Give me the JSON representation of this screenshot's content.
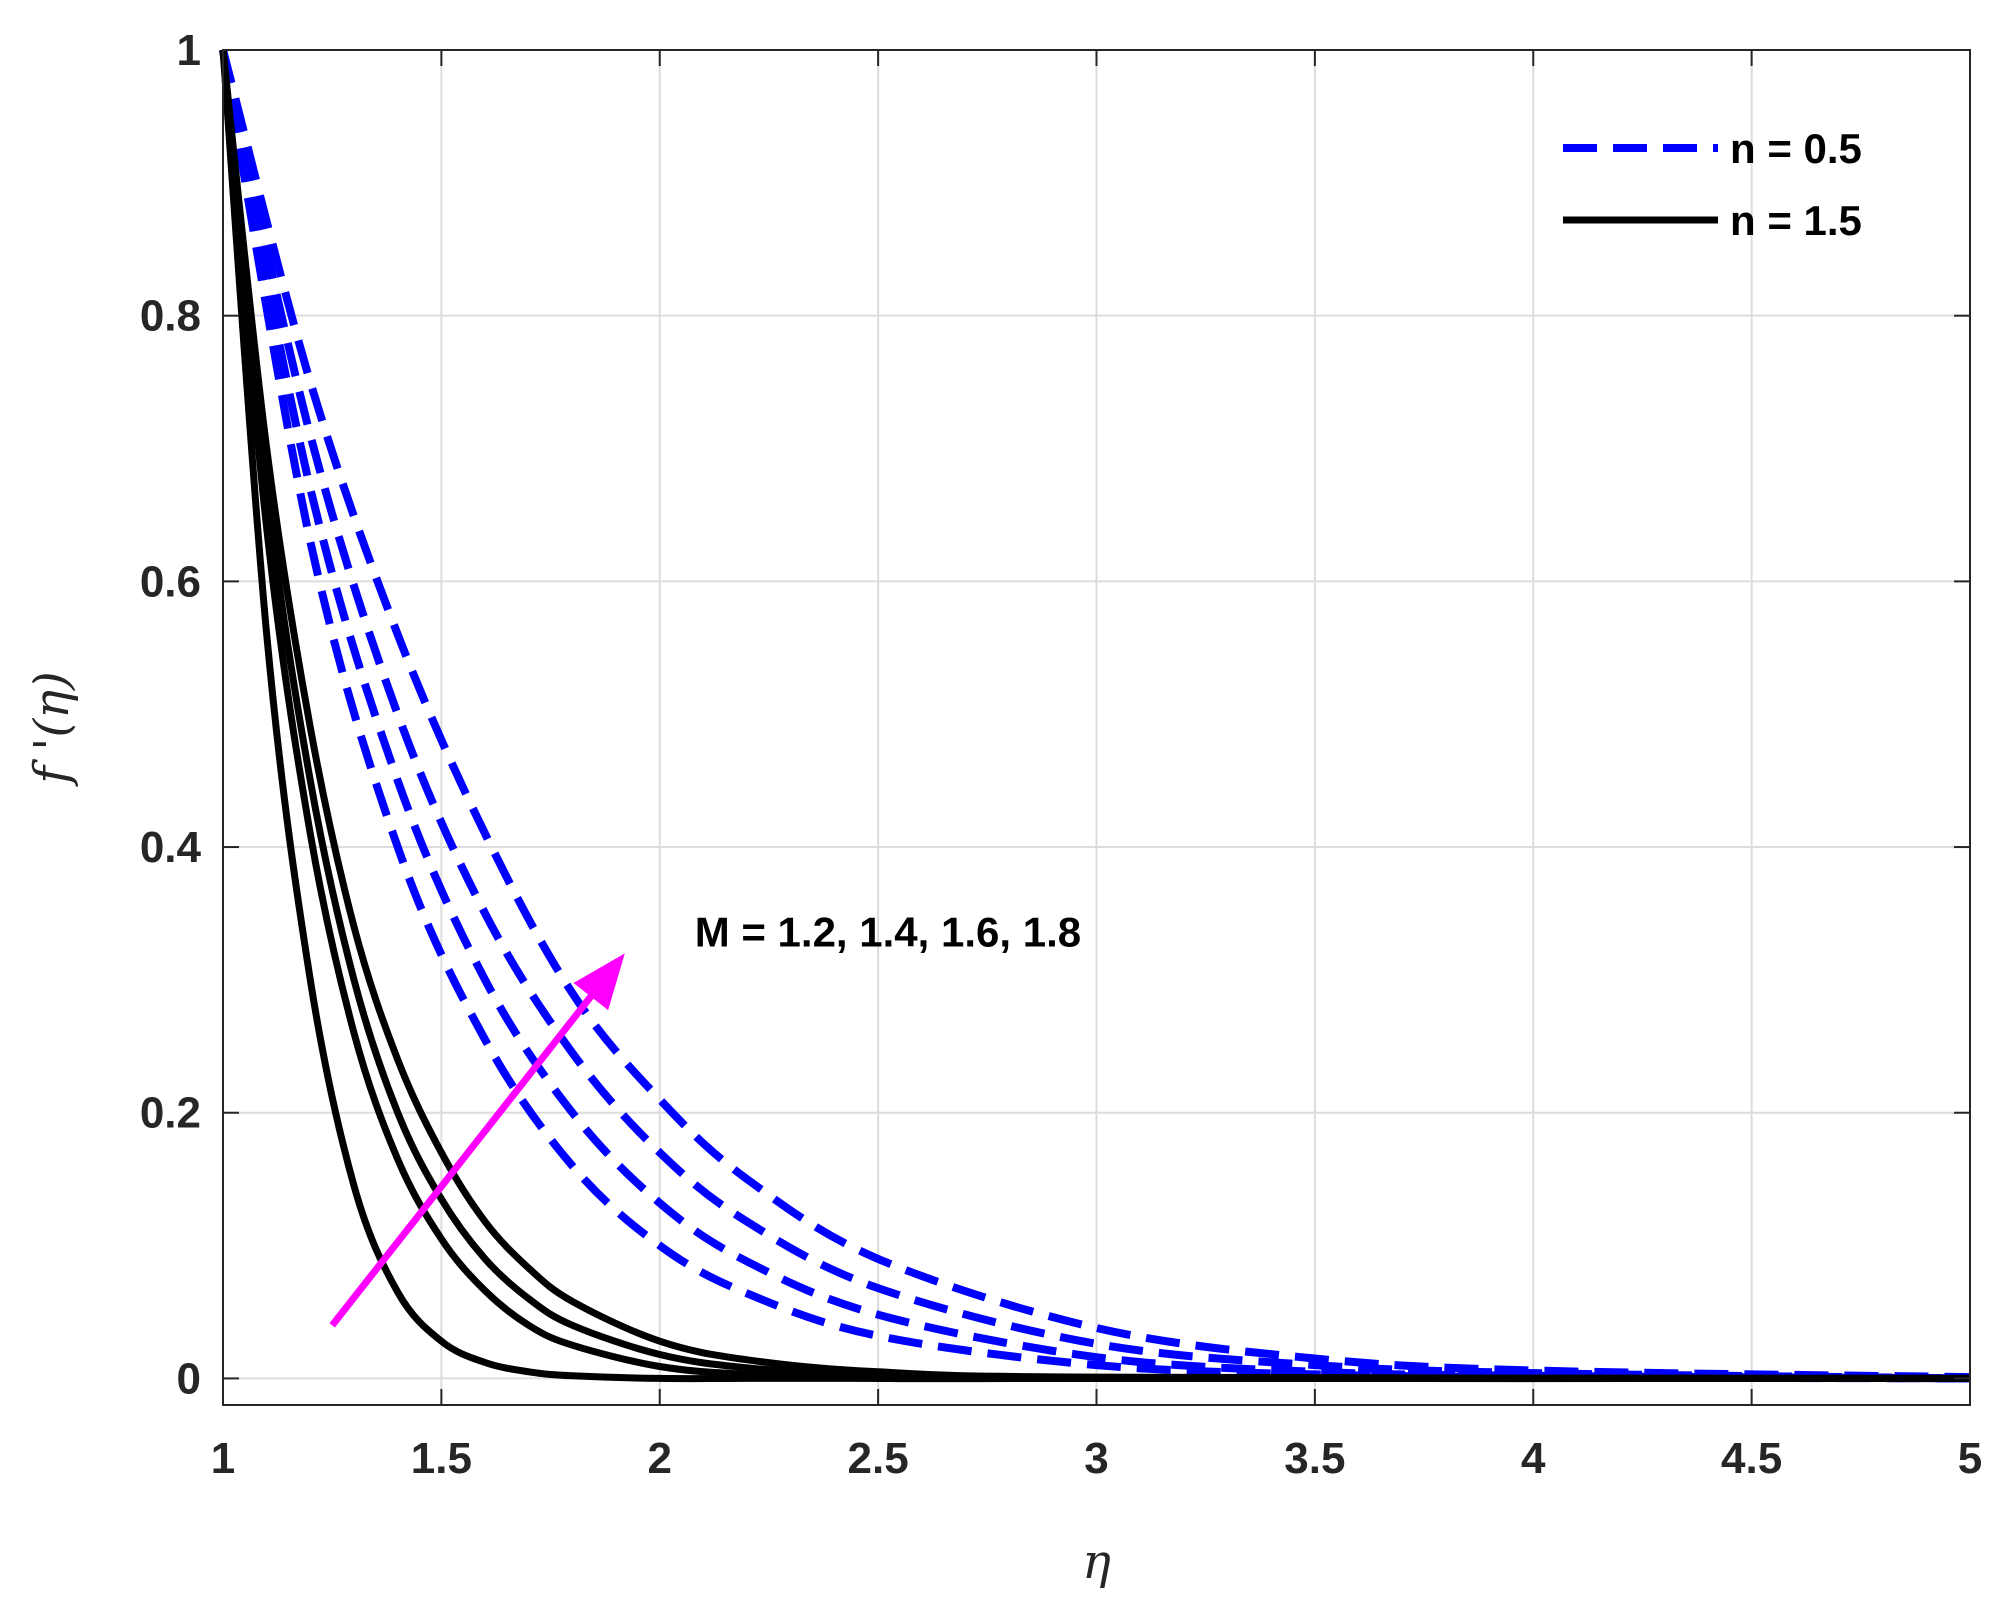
{
  "chart_data": {
    "type": "line",
    "xlabel": "η",
    "ylabel": "f '(η)",
    "xlim": [
      1,
      5
    ],
    "ylim": [
      -0.02,
      1
    ],
    "xticks": [
      1,
      1.5,
      2,
      2.5,
      3,
      3.5,
      4,
      4.5,
      5
    ],
    "yticks": [
      0,
      0.2,
      0.4,
      0.6,
      0.8,
      1
    ],
    "xtick_labels": [
      "1",
      "1.5",
      "2",
      "2.5",
      "3",
      "3.5",
      "4",
      "4.5",
      "5"
    ],
    "ytick_labels": [
      "0",
      "0.2",
      "0.4",
      "0.6",
      "0.8",
      "1"
    ],
    "grid": true,
    "legend": {
      "placement": "top-right",
      "entries": [
        {
          "label": "n = 0.5",
          "style": "dashed",
          "color": "#0000ff"
        },
        {
          "label": "n = 1.5",
          "style": "solid",
          "color": "#000000"
        }
      ]
    },
    "annotation": {
      "text": "M = 1.2, 1.4, 1.6, 1.8",
      "arrow_color": "#ff00ff",
      "arrow_from": [
        1.25,
        0.04
      ],
      "arrow_to": [
        1.92,
        0.32
      ],
      "text_at": [
        2.08,
        0.325
      ]
    },
    "series": [
      {
        "group": "n = 0.5",
        "style": "dashed",
        "color": "#0000ff",
        "x": [
          1,
          1.2,
          1.4,
          1.6,
          1.8,
          2.0,
          2.2,
          2.5,
          3.0,
          3.5,
          4.0,
          5.0
        ],
        "y": [
          1,
          0.63,
          0.4,
          0.255,
          0.16,
          0.1,
          0.064,
          0.032,
          0.01,
          0.003,
          0.001,
          0
        ]
      },
      {
        "group": "n = 0.5",
        "style": "dashed",
        "color": "#0000ff",
        "x": [
          1,
          1.2,
          1.4,
          1.6,
          1.8,
          2.0,
          2.2,
          2.5,
          3.0,
          3.5,
          4.0,
          5.0
        ],
        "y": [
          1,
          0.67,
          0.45,
          0.3,
          0.2,
          0.132,
          0.088,
          0.048,
          0.016,
          0.005,
          0.002,
          0
        ]
      },
      {
        "group": "n = 0.5",
        "style": "dashed",
        "color": "#0000ff",
        "x": [
          1,
          1.2,
          1.4,
          1.6,
          1.8,
          2.0,
          2.2,
          2.5,
          3.0,
          3.5,
          4.0,
          5.0
        ],
        "y": [
          1,
          0.71,
          0.5,
          0.35,
          0.245,
          0.17,
          0.118,
          0.068,
          0.026,
          0.01,
          0.004,
          0
        ]
      },
      {
        "group": "n = 0.5",
        "style": "dashed",
        "color": "#0000ff",
        "x": [
          1,
          1.2,
          1.4,
          1.6,
          1.8,
          2.0,
          2.2,
          2.5,
          3.0,
          3.5,
          4.0,
          5.0
        ],
        "y": [
          1,
          0.75,
          0.56,
          0.41,
          0.29,
          0.21,
          0.15,
          0.09,
          0.038,
          0.015,
          0.006,
          0.001
        ]
      },
      {
        "group": "n = 1.5",
        "style": "solid",
        "color": "#000000",
        "x": [
          1,
          1.1,
          1.2,
          1.3,
          1.4,
          1.5,
          1.6,
          1.7,
          1.8,
          2.0,
          2.2,
          2.5,
          3.0
        ],
        "y": [
          1,
          0.56,
          0.3,
          0.145,
          0.065,
          0.028,
          0.012,
          0.005,
          0.002,
          0,
          0,
          0,
          0
        ]
      },
      {
        "group": "n = 1.5",
        "style": "solid",
        "color": "#000000",
        "x": [
          1,
          1.1,
          1.2,
          1.3,
          1.4,
          1.5,
          1.6,
          1.7,
          1.8,
          2.0,
          2.2,
          2.5,
          3.0
        ],
        "y": [
          1,
          0.64,
          0.41,
          0.26,
          0.165,
          0.105,
          0.066,
          0.04,
          0.025,
          0.009,
          0.003,
          0,
          0
        ]
      },
      {
        "group": "n = 1.5",
        "style": "solid",
        "color": "#000000",
        "x": [
          1,
          1.1,
          1.2,
          1.3,
          1.4,
          1.5,
          1.6,
          1.7,
          1.8,
          2.0,
          2.2,
          2.5,
          3.0
        ],
        "y": [
          1,
          0.67,
          0.45,
          0.3,
          0.2,
          0.135,
          0.09,
          0.06,
          0.04,
          0.018,
          0.008,
          0.002,
          0
        ]
      },
      {
        "group": "n = 1.5",
        "style": "solid",
        "color": "#000000",
        "x": [
          1,
          1.1,
          1.2,
          1.3,
          1.4,
          1.5,
          1.6,
          1.7,
          1.8,
          2.0,
          2.2,
          2.5,
          3.0
        ],
        "y": [
          1,
          0.7,
          0.49,
          0.34,
          0.24,
          0.17,
          0.118,
          0.083,
          0.058,
          0.028,
          0.014,
          0.005,
          0.001
        ]
      }
    ]
  }
}
